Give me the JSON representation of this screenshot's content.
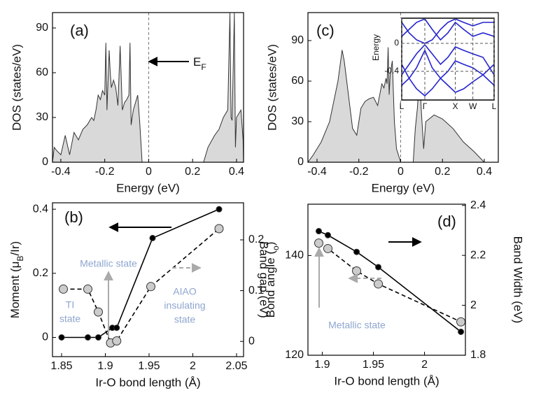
{
  "chart_data": [
    {
      "type": "area",
      "panel_label": "(a)",
      "xlabel": "Energy (eV)",
      "ylabel": "DOS (states/eV)",
      "xlim": [
        -0.438,
        0.432
      ],
      "ylim": [
        0,
        100.3
      ],
      "xticks": [
        -0.4,
        -0.2,
        0,
        0.2,
        0.4
      ],
      "yticks": [
        0,
        30,
        60,
        90
      ],
      "vline": 0,
      "annotation": [
        "E",
        "F"
      ],
      "color": "#d9d9d9",
      "x": [
        -0.438,
        -0.43,
        -0.42,
        -0.4,
        -0.38,
        -0.36,
        -0.34,
        -0.32,
        -0.3,
        -0.28,
        -0.26,
        -0.25,
        -0.24,
        -0.23,
        -0.22,
        -0.21,
        -0.2,
        -0.195,
        -0.19,
        -0.18,
        -0.175,
        -0.17,
        -0.16,
        -0.15,
        -0.14,
        -0.13,
        -0.12,
        -0.11,
        -0.1,
        -0.09,
        -0.085,
        -0.08,
        -0.07,
        -0.05,
        -0.04,
        -0.03,
        0.25,
        0.27,
        0.3,
        0.32,
        0.34,
        0.36,
        0.37,
        0.375,
        0.38,
        0.39,
        0.395,
        0.4,
        0.42,
        0.43,
        0.432
      ],
      "values": [
        0,
        10,
        8,
        5,
        18,
        5,
        20,
        15,
        22,
        25,
        30,
        28,
        35,
        45,
        42,
        48,
        45,
        80,
        35,
        75,
        60,
        50,
        55,
        50,
        38,
        78,
        35,
        40,
        42,
        45,
        80,
        25,
        35,
        45,
        25,
        0,
        0,
        10,
        18,
        22,
        30,
        35,
        100,
        30,
        28,
        100,
        10,
        30,
        35,
        15,
        0
      ]
    },
    {
      "type": "area",
      "panel_label": "(c)",
      "xlabel": "Energy (eV)",
      "ylabel": "DOS (states/eV)",
      "xlim": [
        -0.4435,
        0.467
      ],
      "ylim": [
        0,
        110.7
      ],
      "xticks": [
        -0.4,
        -0.2,
        0,
        0.2,
        0.4
      ],
      "yticks": [
        0,
        30,
        60,
        90
      ],
      "vline": 0,
      "color": "#d9d9d9",
      "x": [
        -0.4435,
        -0.42,
        -0.38,
        -0.34,
        -0.3,
        -0.28,
        -0.27,
        -0.25,
        -0.23,
        -0.21,
        -0.19,
        -0.17,
        -0.15,
        -0.13,
        -0.11,
        -0.1,
        -0.09,
        -0.08,
        -0.07,
        -0.065,
        -0.06,
        -0.055,
        -0.05,
        -0.04,
        -0.03,
        -0.02,
        0,
        0.06,
        0.07,
        0.08,
        0.09,
        0.1,
        0.11,
        0.12,
        0.16,
        0.2,
        0.25,
        0.3,
        0.35,
        0.4
      ],
      "values": [
        0,
        5,
        15,
        30,
        60,
        83,
        75,
        50,
        25,
        20,
        40,
        45,
        47,
        48,
        42,
        50,
        58,
        55,
        62,
        58,
        85,
        50,
        65,
        75,
        30,
        10,
        0,
        0,
        25,
        40,
        65,
        35,
        10,
        30,
        35,
        32,
        25,
        15,
        8,
        0
      ]
    },
    {
      "type": "line",
      "ylabel": "Energy",
      "xlim": [
        0,
        1
      ],
      "ylim": [
        -0.81,
        0.36
      ],
      "xticks": [
        {
          "value": 0,
          "label": "L"
        },
        {
          "value": 0.25,
          "label": "Γ"
        },
        {
          "value": 0.58,
          "label": "X"
        },
        {
          "value": 0.77,
          "label": "W"
        },
        {
          "value": 1,
          "label": "L"
        }
      ],
      "yticks": [
        0,
        -0.4
      ],
      "grid": true,
      "x": [
        0,
        0.08,
        0.16,
        0.25,
        0.33,
        0.42,
        0.5,
        0.58,
        0.67,
        0.77,
        0.88,
        1
      ],
      "series": [
        {
          "color": "#2424d0",
          "values": [
            -0.45,
            -0.3,
            -0.15,
            -0.02,
            -0.15,
            -0.3,
            -0.2,
            -0.05,
            -0.1,
            -0.15,
            -0.2,
            -0.45
          ]
        },
        {
          "color": "#2424d0",
          "values": [
            -0.6,
            -0.5,
            -0.35,
            -0.1,
            -0.35,
            -0.5,
            -0.4,
            -0.25,
            -0.3,
            -0.35,
            -0.45,
            -0.6
          ]
        },
        {
          "color": "#2424d0",
          "values": [
            0.1,
            0.2,
            0.3,
            0.35,
            0.2,
            0.05,
            0.15,
            0.3,
            0.2,
            0.1,
            0.15,
            0.1
          ]
        },
        {
          "color": "#2424d0",
          "values": [
            0.3,
            0.15,
            0.05,
            0.0,
            0.05,
            0.2,
            0.3,
            0.35,
            0.3,
            0.25,
            0.3,
            0.3
          ]
        },
        {
          "color": "#2424d0",
          "values": [
            -0.3,
            -0.5,
            -0.65,
            -0.75,
            -0.65,
            -0.5,
            -0.6,
            -0.7,
            -0.65,
            -0.55,
            -0.45,
            -0.3
          ]
        }
      ]
    },
    {
      "type": "dual",
      "panel_label": "(b)",
      "xlabel": "Ir-O bond length (Å)",
      "ylabel": [
        "Moment (μ",
        "B",
        "/Ir)"
      ],
      "y2label": "Band gap (eV)",
      "xlim": [
        1.8396,
        2.058
      ],
      "xticks": [
        1.85,
        1.9,
        1.95,
        2,
        2.05
      ],
      "ylim": [
        -0.06,
        0.42
      ],
      "yticks": [
        0,
        0.2,
        0.4
      ],
      "y2lim": [
        -0.03,
        0.273
      ],
      "y2ticks": [
        0,
        0.1,
        0.2
      ],
      "annotations": [
        [
          "Metallic state"
        ],
        [
          "TI",
          "state"
        ],
        [
          "AIAO",
          "insulating",
          "state"
        ]
      ],
      "series": [
        {
          "color": "#000000",
          "style": "solid",
          "x": [
            1.85,
            1.88,
            1.892,
            1.908,
            1.913,
            1.954,
            2.03
          ],
          "values": [
            0,
            0,
            0,
            0.03,
            0.03,
            0.31,
            0.4
          ]
        },
        {
          "color": "#cccccc",
          "style": "dashed",
          "axis": "y2",
          "x": [
            1.852,
            1.88,
            1.892,
            1.906,
            1.913,
            1.952,
            2.03
          ],
          "values": [
            0.103,
            0.103,
            0.058,
            -0.003,
            0.001,
            0.108,
            0.222
          ]
        }
      ]
    },
    {
      "type": "dual",
      "panel_label": "(d)",
      "xlabel": "Ir-O bond length (Å)",
      "ylabel": [
        "Bond angle (",
        "o",
        ")"
      ],
      "y2label": "Band Width (eV)",
      "xlim": [
        1.886,
        2.04
      ],
      "xticks": [
        1.9,
        1.95,
        2
      ],
      "ylim": [
        120,
        150.3
      ],
      "yticks": [
        120,
        140
      ],
      "y2lim": [
        1.8,
        2.405
      ],
      "y2ticks": [
        1.8,
        2,
        2.2,
        2.4
      ],
      "annotations": [
        [
          "Metallic state"
        ]
      ],
      "series": [
        {
          "color": "#000000",
          "style": "solid",
          "axis": "y2",
          "x": [
            1.8966,
            1.9055,
            1.9336,
            1.9548,
            2.0356
          ],
          "values": [
            2.297,
            2.281,
            2.214,
            2.153,
            1.894
          ]
        },
        {
          "color": "#cccccc",
          "style": "dashed",
          "x": [
            1.8966,
            1.9055,
            1.9336,
            1.9548,
            2.0356
          ],
          "values": [
            142.5,
            141.4,
            136.9,
            134.3,
            126.7
          ]
        }
      ]
    }
  ]
}
